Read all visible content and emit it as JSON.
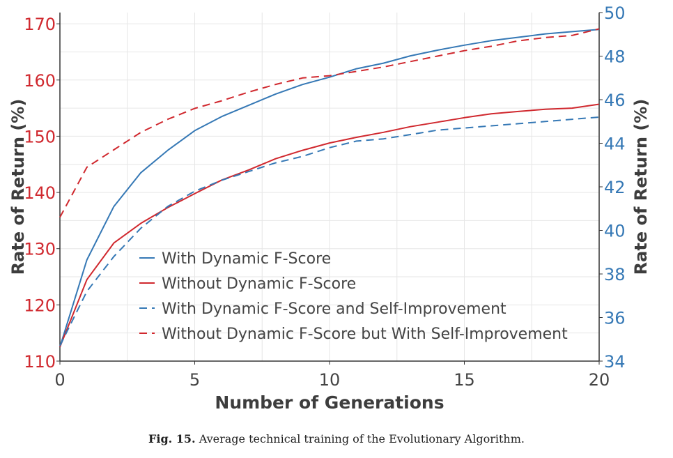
{
  "chart_data": {
    "type": "line",
    "xlabel": "Number of Generations",
    "ylabel_left": "Rate of Return (%)",
    "ylabel_right": "Rate of Return (%)",
    "xlim": [
      0,
      20
    ],
    "ylim_left": [
      110,
      172
    ],
    "ylim_right": [
      34,
      50
    ],
    "x_ticks": [
      0,
      5,
      10,
      15,
      20
    ],
    "y_ticks_left": [
      110,
      120,
      130,
      140,
      150,
      160,
      170
    ],
    "y_ticks_right": [
      34,
      36,
      38,
      40,
      42,
      44,
      46,
      48,
      50
    ],
    "grid": true,
    "legend_position": "bottom-right",
    "colors": {
      "left_axis": "#d0282e",
      "right_axis": "#3578b5"
    },
    "x": [
      0,
      1,
      2,
      3,
      4,
      5,
      6,
      7,
      8,
      9,
      10,
      11,
      12,
      13,
      14,
      15,
      16,
      17,
      18,
      19,
      20
    ],
    "series": [
      {
        "name": "With Dynamic F-Score",
        "axis": "left",
        "style": "solid",
        "color": "#3578b5",
        "values": [
          112.5,
          128,
          137.5,
          143.5,
          147.5,
          151,
          153.5,
          155.5,
          157.5,
          159.2,
          160.5,
          162,
          163,
          164.3,
          165.3,
          166.2,
          167,
          167.6,
          168.2,
          168.6,
          169
        ]
      },
      {
        "name": "Without Dynamic F-Score",
        "axis": "left",
        "style": "solid",
        "color": "#d0282e",
        "values": [
          112.5,
          124.5,
          131,
          134.5,
          137.3,
          139.8,
          142.2,
          144,
          146,
          147.5,
          148.8,
          149.8,
          150.7,
          151.7,
          152.5,
          153.3,
          154,
          154.4,
          154.8,
          155,
          155.7
        ]
      },
      {
        "name": "With Dynamic F-Score and Self-Improvement",
        "axis": "right",
        "style": "dashed",
        "color": "#3578b5",
        "values": [
          34.7,
          37.2,
          38.8,
          40.1,
          41.1,
          41.8,
          42.3,
          42.7,
          43.1,
          43.4,
          43.8,
          44.1,
          44.2,
          44.4,
          44.6,
          44.7,
          44.8,
          44.9,
          45,
          45.1,
          45.2
        ]
      },
      {
        "name": "Without Dynamic F-Score but With Self-Improvement",
        "axis": "right",
        "style": "dashed",
        "color": "#d0282e",
        "values": [
          40.6,
          42.9,
          43.7,
          44.5,
          45.1,
          45.6,
          45.95,
          46.35,
          46.7,
          47,
          47.1,
          47.3,
          47.5,
          47.75,
          48,
          48.25,
          48.45,
          48.7,
          48.85,
          48.95,
          49.25
        ]
      }
    ]
  },
  "caption": {
    "label": "Fig. 15.",
    "text": "Average technical training of the Evolutionary Algorithm."
  }
}
